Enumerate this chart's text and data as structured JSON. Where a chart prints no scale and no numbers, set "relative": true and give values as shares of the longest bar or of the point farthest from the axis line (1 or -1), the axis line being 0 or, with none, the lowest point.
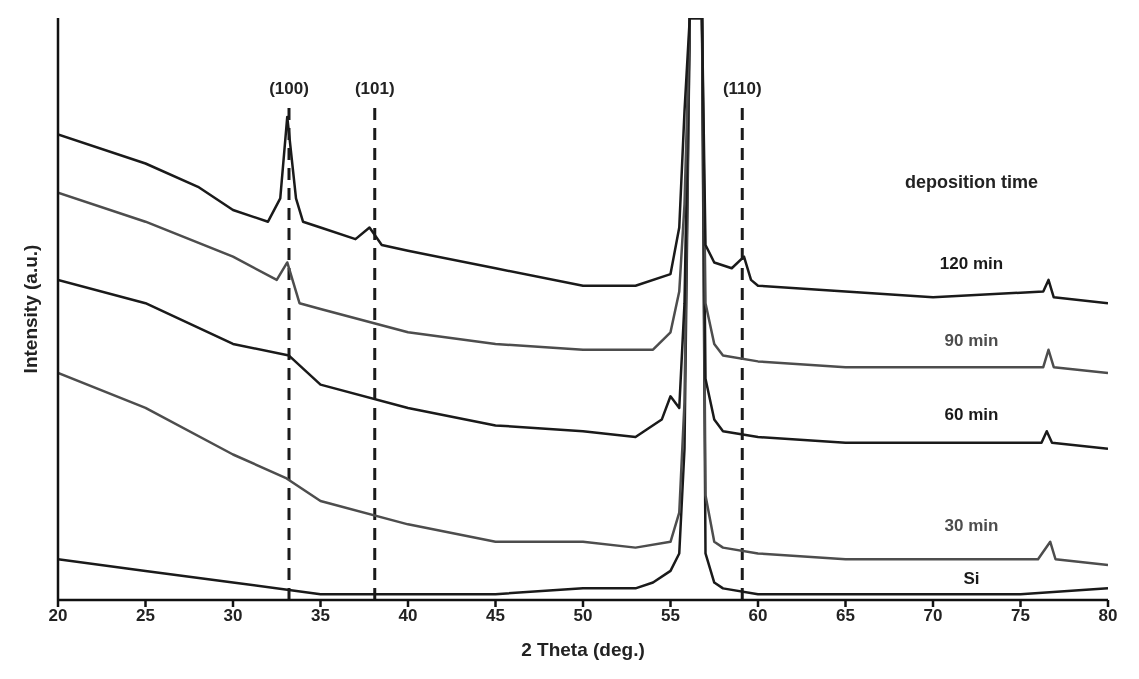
{
  "chart_data": {
    "type": "line",
    "relative": true,
    "xlabel": "2 Theta (deg.)",
    "ylabel": "Intensity (a.u.)",
    "legend_title": "deposition time",
    "tick_labels": "x",
    "xlim": [
      20,
      80
    ],
    "xticks": [
      20,
      25,
      30,
      35,
      40,
      45,
      50,
      55,
      60,
      65,
      70,
      75,
      80
    ],
    "ref_lines": [
      {
        "axis": "x",
        "value": 33.2,
        "color": "#1a1a1a",
        "line_style": "dashed"
      },
      {
        "axis": "x",
        "value": 38.1,
        "color": "#1a1a1a",
        "line_style": "dashed"
      },
      {
        "axis": "x",
        "value": 59.1,
        "color": "#1a1a1a",
        "line_style": "dashed"
      }
    ],
    "annotations": [
      "(100)",
      "(101)",
      "(110)"
    ],
    "series": [
      {
        "name": "Si",
        "color": "#1a1a1a",
        "x": [
          20,
          25,
          30,
          35,
          40,
          45,
          50,
          53,
          54,
          55,
          55.5,
          55.8,
          56.1,
          56.45,
          56.8,
          57,
          57.5,
          58,
          60,
          65,
          70,
          75,
          80
        ],
        "values": [
          0.07,
          0.05,
          0.03,
          0.01,
          0.01,
          0.01,
          0.02,
          0.02,
          0.03,
          0.05,
          0.08,
          0.26,
          1,
          1,
          1,
          0.08,
          0.03,
          0.02,
          0.01,
          0.01,
          0.01,
          0.01,
          0.02
        ]
      },
      {
        "name": "30 min",
        "color": "#4d4d4d",
        "x": [
          20,
          25,
          30,
          33,
          35,
          40,
          45,
          50,
          53,
          55,
          55.5,
          55.8,
          56.1,
          56.45,
          56.8,
          57,
          57.5,
          58,
          60,
          65,
          70,
          76,
          76.7,
          77,
          80
        ],
        "values": [
          0.39,
          0.33,
          0.25,
          0.21,
          0.17,
          0.13,
          0.1,
          0.1,
          0.09,
          0.1,
          0.15,
          0.34,
          1,
          1,
          1,
          0.18,
          0.1,
          0.09,
          0.08,
          0.07,
          0.07,
          0.07,
          0.1,
          0.07,
          0.06
        ]
      },
      {
        "name": "60 min",
        "color": "#1a1a1a",
        "x": [
          20,
          25,
          30,
          33.2,
          35,
          40,
          45,
          50,
          53,
          54.5,
          55,
          55.5,
          55.8,
          56.1,
          56.45,
          56.8,
          57,
          57.5,
          58,
          60,
          65,
          70,
          76.2,
          76.5,
          76.8,
          80
        ],
        "values": [
          0.55,
          0.51,
          0.44,
          0.42,
          0.37,
          0.33,
          0.3,
          0.29,
          0.28,
          0.31,
          0.35,
          0.33,
          0.51,
          1,
          1,
          1,
          0.38,
          0.31,
          0.29,
          0.28,
          0.27,
          0.27,
          0.27,
          0.29,
          0.27,
          0.26
        ]
      },
      {
        "name": "90 min",
        "color": "#4d4d4d",
        "x": [
          20,
          25,
          30,
          32.5,
          33.1,
          33.8,
          35,
          40,
          45,
          50,
          54,
          55,
          55.5,
          55.8,
          56.1,
          56.45,
          56.8,
          57,
          57.5,
          58,
          60,
          65,
          70,
          76.3,
          76.6,
          76.9,
          80
        ],
        "values": [
          0.7,
          0.65,
          0.59,
          0.55,
          0.58,
          0.51,
          0.5,
          0.46,
          0.44,
          0.43,
          0.43,
          0.46,
          0.53,
          0.68,
          1,
          1,
          1,
          0.51,
          0.44,
          0.42,
          0.41,
          0.4,
          0.4,
          0.4,
          0.43,
          0.4,
          0.39
        ]
      },
      {
        "name": "120 min",
        "color": "#1a1a1a",
        "x": [
          20,
          25,
          28,
          30,
          32,
          32.7,
          33.1,
          33.6,
          34,
          35,
          37,
          37.8,
          38.5,
          40,
          45,
          50,
          53,
          55,
          55.5,
          55.8,
          56.1,
          56.45,
          56.8,
          57,
          57.5,
          58.5,
          59.2,
          59.6,
          60,
          65,
          70,
          76.3,
          76.6,
          76.9,
          80
        ],
        "values": [
          0.8,
          0.75,
          0.71,
          0.67,
          0.65,
          0.69,
          0.83,
          0.69,
          0.65,
          0.64,
          0.62,
          0.64,
          0.61,
          0.6,
          0.57,
          0.54,
          0.54,
          0.56,
          0.64,
          0.84,
          1,
          1,
          1,
          0.61,
          0.58,
          0.57,
          0.59,
          0.55,
          0.54,
          0.53,
          0.52,
          0.53,
          0.55,
          0.52,
          0.51
        ]
      }
    ]
  }
}
